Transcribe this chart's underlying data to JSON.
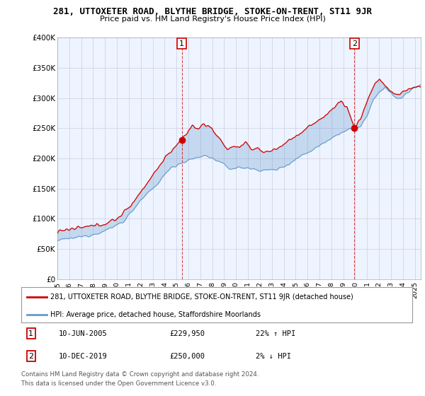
{
  "title": "281, UTTOXETER ROAD, BLYTHE BRIDGE, STOKE-ON-TRENT, ST11 9JR",
  "subtitle": "Price paid vs. HM Land Registry's House Price Index (HPI)",
  "ylabel_ticks": [
    "£0",
    "£50K",
    "£100K",
    "£150K",
    "£200K",
    "£250K",
    "£300K",
    "£350K",
    "£400K"
  ],
  "ylim": [
    0,
    400000
  ],
  "xlim_start": 1995.0,
  "xlim_end": 2025.5,
  "sale1_date": 2005.44,
  "sale1_price": 229950,
  "sale2_date": 2019.94,
  "sale2_price": 250000,
  "legend_line1": "281, UTTOXETER ROAD, BLYTHE BRIDGE, STOKE-ON-TRENT, ST11 9JR (detached house)",
  "legend_line2": "HPI: Average price, detached house, Staffordshire Moorlands",
  "footer": "Contains HM Land Registry data © Crown copyright and database right 2024.\nThis data is licensed under the Open Government Licence v3.0.",
  "red_color": "#cc0000",
  "blue_color": "#6699cc",
  "fill_color": "#ddeeff",
  "background_color": "#ffffff",
  "plot_bg_color": "#eef4ff",
  "grid_color": "#ccccdd"
}
